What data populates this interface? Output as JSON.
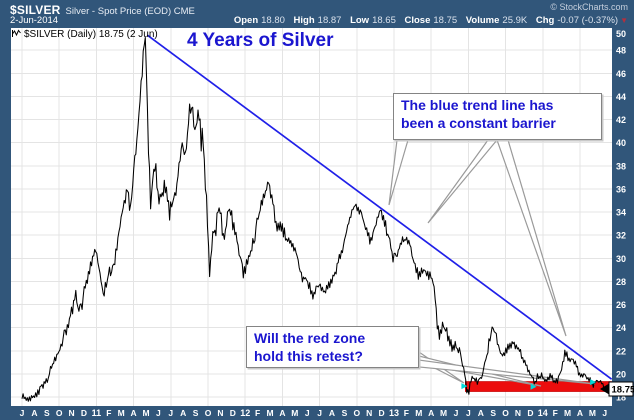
{
  "header": {
    "symbol": "$SILVER",
    "description": "Silver - Spot Price (EOD) CME",
    "copyright": "© StockCharts.com",
    "date": "2-Jun-2014",
    "quote": [
      {
        "label": "Open",
        "value": "18.80"
      },
      {
        "label": "High",
        "value": "18.87"
      },
      {
        "label": "Low",
        "value": "18.65"
      },
      {
        "label": "Close",
        "value": "18.75"
      },
      {
        "label": "Volume",
        "value": "25.9K"
      },
      {
        "label": "Chg",
        "value": "-0.07 (-0.37%)"
      }
    ],
    "chg_direction_arrow": "▼"
  },
  "chart_label": "$SILVER (Daily) 18.75 (2 Jun)",
  "annotations": {
    "title": "4 Years of Silver",
    "callout_trendline": {
      "line1": "The blue trend line has",
      "line2": "been a constant barrier"
    },
    "callout_redzone": {
      "line1": "Will the red zone",
      "line2": "hold this retest?"
    },
    "price_flag": "18.75"
  },
  "colors": {
    "frame": "#31567a",
    "grid": "#e4e4e4",
    "price_line": "#000000",
    "trendline": "#2020e8",
    "red_zone": "#ec0d0d",
    "red_zone_edge": "#c00000",
    "annotation_blue": "#1b16cf",
    "cyan_marker": "#00d9d9",
    "axis_text": "#ffffff",
    "chg_arrow_red": "#b2303f"
  },
  "chart_data": {
    "type": "line",
    "title": "4 Years of Silver",
    "symbol": "$SILVER Silver - Spot Price (EOD) CME, Daily",
    "x_axis": {
      "start": "Jul 2010",
      "end": "Jun 2014",
      "labels": [
        "J",
        "A",
        "S",
        "O",
        "N",
        "D",
        "11",
        "F",
        "M",
        "A",
        "M",
        "J",
        "J",
        "A",
        "S",
        "O",
        "N",
        "D",
        "12",
        "F",
        "M",
        "A",
        "M",
        "J",
        "J",
        "A",
        "S",
        "O",
        "N",
        "D",
        "13",
        "F",
        "M",
        "A",
        "M",
        "J",
        "J",
        "A",
        "S",
        "O",
        "N",
        "D",
        "14",
        "F",
        "M",
        "A",
        "M",
        "J"
      ]
    },
    "y_axis": {
      "min": 18,
      "max": 50,
      "step": 2,
      "labels": [
        "50",
        "48",
        "46",
        "44",
        "42",
        "40",
        "38",
        "36",
        "34",
        "32",
        "30",
        "28",
        "26",
        "24",
        "22",
        "20",
        "18"
      ]
    },
    "grid": {
      "horizontal_step_price": 2,
      "vertical_step_months": 3
    },
    "last_price": 18.75,
    "series_anchors_month_price_vol": [
      [
        0,
        18.1,
        0.2
      ],
      [
        0.5,
        17.75,
        0.2
      ],
      [
        1.3,
        18.4,
        0.25
      ],
      [
        2,
        19.4,
        0.3
      ],
      [
        2.9,
        21.8,
        0.35
      ],
      [
        3.6,
        23.6,
        0.45
      ],
      [
        4.35,
        26.8,
        0.5
      ],
      [
        4.6,
        25.3,
        0.45
      ],
      [
        5.5,
        29.3,
        0.5
      ],
      [
        5.95,
        30.9,
        0.4
      ],
      [
        6.55,
        26.9,
        0.5
      ],
      [
        7.5,
        29.8,
        0.45
      ],
      [
        8.05,
        33.9,
        0.45
      ],
      [
        8.5,
        36,
        0.5
      ],
      [
        8.75,
        34.1,
        0.5
      ],
      [
        9.05,
        37.9,
        0.5
      ],
      [
        9.4,
        41.8,
        0.6
      ],
      [
        9.7,
        46,
        0.7
      ],
      [
        9.9,
        49.4,
        0.7
      ],
      [
        10.15,
        42.5,
        1.3
      ],
      [
        10.35,
        34.6,
        1.2
      ],
      [
        10.7,
        38.2,
        0.9
      ],
      [
        11.05,
        34.9,
        0.8
      ],
      [
        11.5,
        36.4,
        0.6
      ],
      [
        11.9,
        33.9,
        0.6
      ],
      [
        12.4,
        35.6,
        0.6
      ],
      [
        12.9,
        39.9,
        0.6
      ],
      [
        13.2,
        38.9,
        0.7
      ],
      [
        13.6,
        43.4,
        0.8
      ],
      [
        13.95,
        40.9,
        0.8
      ],
      [
        14.2,
        42.4,
        0.7
      ],
      [
        14.6,
        40.1,
        0.8
      ],
      [
        14.85,
        36.2,
        1.1
      ],
      [
        15.08,
        28.9,
        1.2
      ],
      [
        15.45,
        31.9,
        0.9
      ],
      [
        15.9,
        34.2,
        0.8
      ],
      [
        16.3,
        31.9,
        0.7
      ],
      [
        16.7,
        34.4,
        0.7
      ],
      [
        17.15,
        32.4,
        0.6
      ],
      [
        17.9,
        28.7,
        0.6
      ],
      [
        18.45,
        30.3,
        0.5
      ],
      [
        19.05,
        33.6,
        0.5
      ],
      [
        19.9,
        36.8,
        0.5
      ],
      [
        20.5,
        32.9,
        0.6
      ],
      [
        21,
        32.5,
        0.5
      ],
      [
        21.5,
        31.4,
        0.45
      ],
      [
        22.05,
        30.8,
        0.45
      ],
      [
        22.55,
        28.4,
        0.45
      ],
      [
        23.05,
        28,
        0.4
      ],
      [
        23.5,
        26.8,
        0.4
      ],
      [
        23.85,
        27.7,
        0.35
      ],
      [
        24.35,
        27.1,
        0.35
      ],
      [
        25.05,
        28.1,
        0.35
      ],
      [
        25.95,
        31.2,
        0.45
      ],
      [
        26.45,
        33.6,
        0.5
      ],
      [
        26.8,
        34.6,
        0.5
      ],
      [
        27.35,
        34,
        0.45
      ],
      [
        28.05,
        31.3,
        0.5
      ],
      [
        28.9,
        34.2,
        0.5
      ],
      [
        29.45,
        32.4,
        0.5
      ],
      [
        29.95,
        30.1,
        0.5
      ],
      [
        30.45,
        31,
        0.4
      ],
      [
        31.05,
        31.8,
        0.4
      ],
      [
        31.9,
        28.6,
        0.45
      ],
      [
        32.45,
        28.9,
        0.4
      ],
      [
        32.95,
        28.4,
        0.35
      ],
      [
        33.3,
        27.2,
        0.4
      ],
      [
        33.5,
        23.4,
        1
      ],
      [
        33.95,
        24.2,
        0.6
      ],
      [
        34.6,
        22.4,
        0.5
      ],
      [
        34.95,
        22.5,
        0.45
      ],
      [
        35.35,
        21.8,
        0.45
      ],
      [
        35.92,
        18.6,
        0.45
      ],
      [
        36.25,
        19.8,
        0.35
      ],
      [
        36.75,
        19.4,
        0.3
      ],
      [
        37.05,
        19.8,
        0.35
      ],
      [
        37.55,
        21.9,
        0.5
      ],
      [
        37.92,
        24.1,
        0.5
      ],
      [
        38.25,
        23.4,
        0.45
      ],
      [
        38.55,
        21.7,
        0.45
      ],
      [
        38.95,
        21.8,
        0.35
      ],
      [
        39.25,
        22.5,
        0.35
      ],
      [
        39.75,
        22.6,
        0.3
      ],
      [
        40.15,
        21.9,
        0.3
      ],
      [
        40.65,
        20.7,
        0.3
      ],
      [
        41.05,
        20,
        0.3
      ],
      [
        41.45,
        19.2,
        0.28
      ],
      [
        41.85,
        19.9,
        0.28
      ],
      [
        42.25,
        19.4,
        0.28
      ],
      [
        42.65,
        20,
        0.28
      ],
      [
        43.05,
        19.15,
        0.28
      ],
      [
        43.45,
        20.3,
        0.32
      ],
      [
        43.78,
        21.9,
        0.35
      ],
      [
        44.15,
        21.2,
        0.32
      ],
      [
        44.45,
        21.3,
        0.3
      ],
      [
        44.95,
        19.9,
        0.28
      ],
      [
        45.35,
        20,
        0.26
      ],
      [
        45.75,
        19.5,
        0.24
      ],
      [
        46.1,
        19,
        0.24
      ],
      [
        46.45,
        19.6,
        0.26
      ],
      [
        46.8,
        19,
        0.22
      ],
      [
        47.05,
        18.75,
        0.15
      ]
    ],
    "trendline": {
      "from_month": 10.1,
      "from_price": 49.3,
      "to_month": 47.55,
      "to_price": 19.55
    },
    "red_zone": {
      "from_month": 35.75,
      "to_month": 47.55,
      "price_top": 19.35,
      "price_bottom": 18.48
    },
    "retest_markers_month_price": [
      [
        35.92,
        18.95
      ],
      [
        41.5,
        18.9
      ],
      [
        46.3,
        19.3
      ]
    ]
  }
}
